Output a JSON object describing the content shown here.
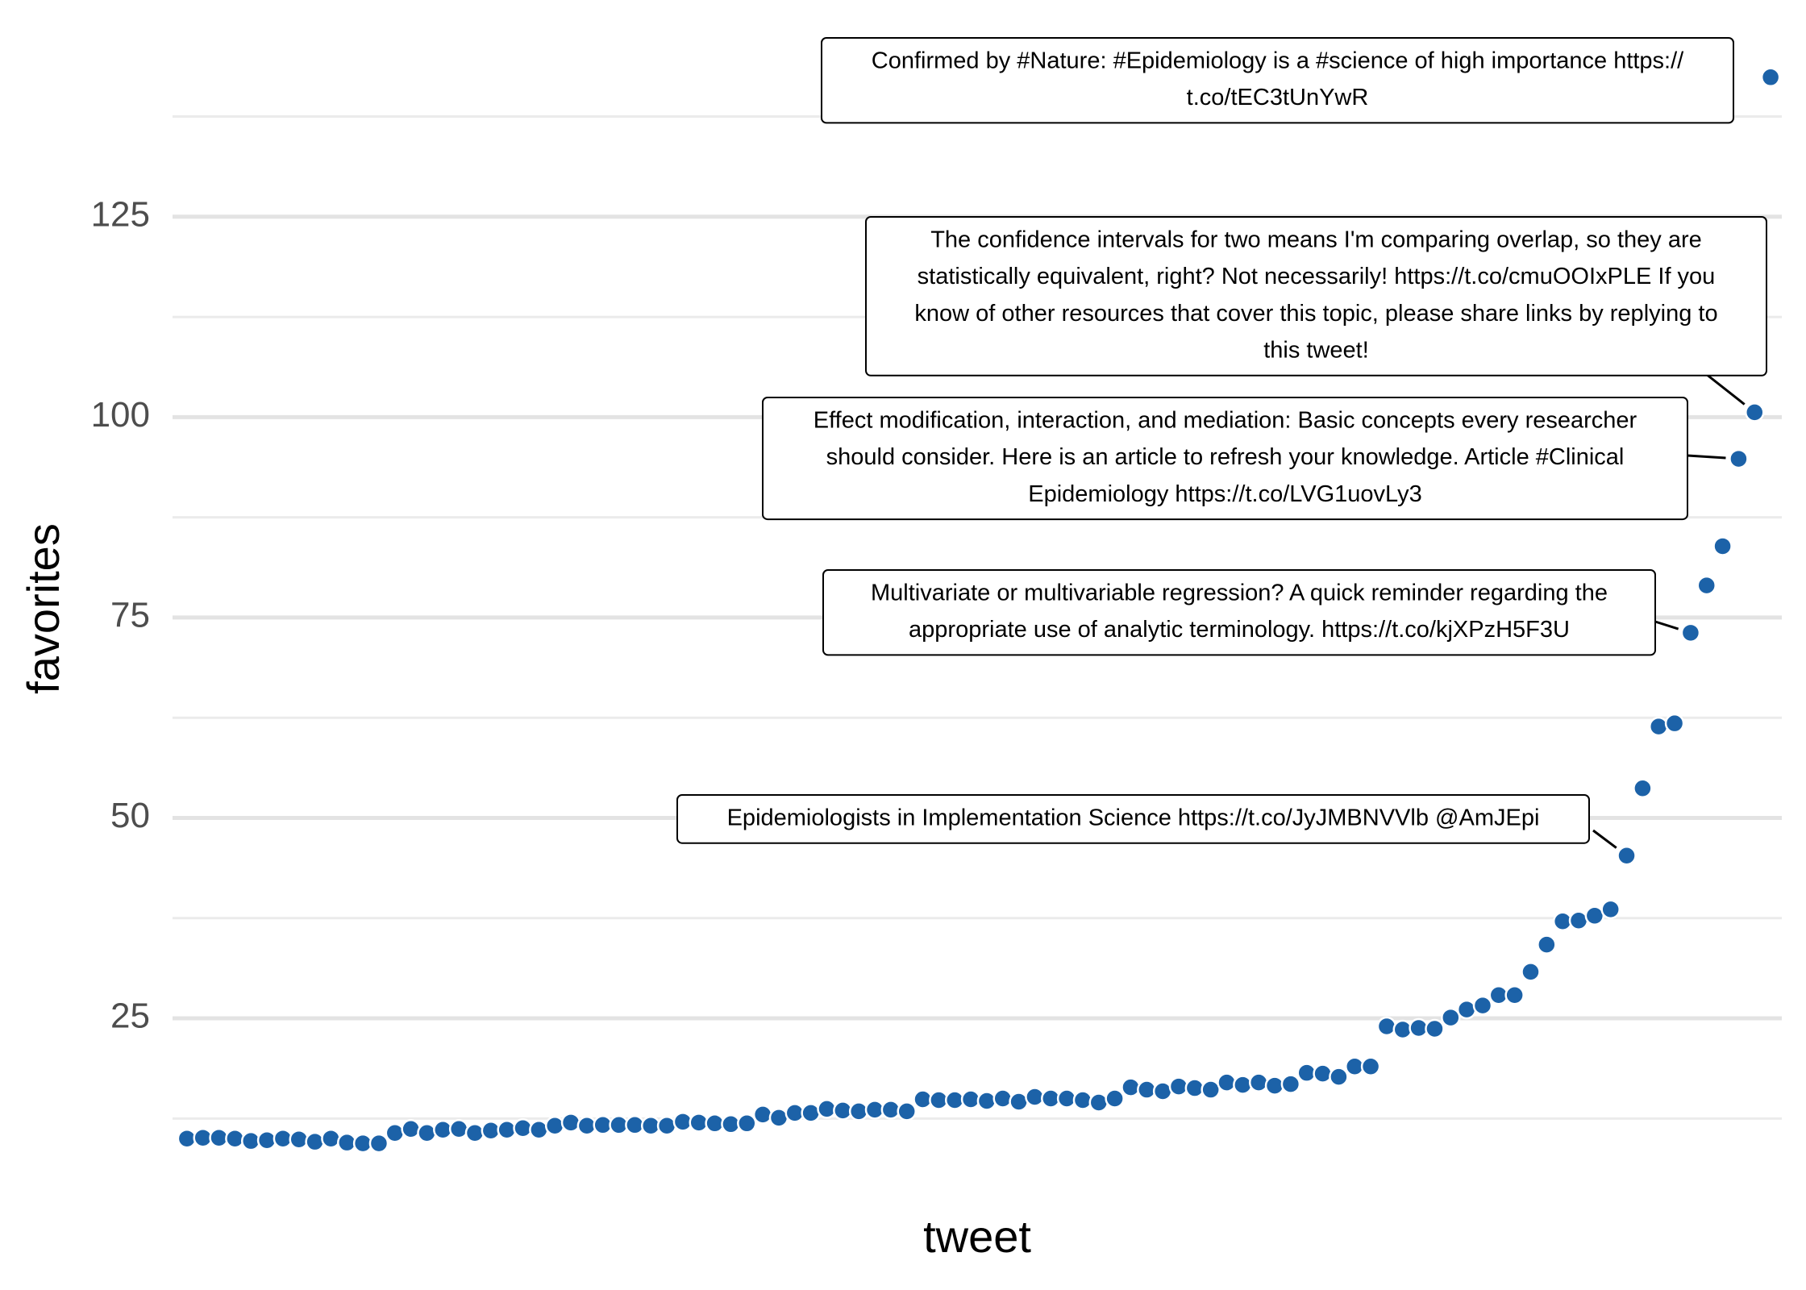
{
  "chart_data": {
    "type": "scatter",
    "xlabel": "tweet",
    "ylabel": "favorites",
    "x": [
      1,
      2,
      3,
      4,
      5,
      6,
      7,
      8,
      9,
      10,
      11,
      12,
      13,
      14,
      15,
      16,
      17,
      18,
      19,
      20,
      21,
      22,
      23,
      24,
      25,
      26,
      27,
      28,
      29,
      30,
      31,
      32,
      33,
      34,
      35,
      36,
      37,
      38,
      39,
      40,
      41,
      42,
      43,
      44,
      45,
      46,
      47,
      48,
      49,
      50,
      51,
      52,
      53,
      54,
      55,
      56,
      57,
      58,
      59,
      60,
      61,
      62,
      63,
      64,
      65,
      66,
      67,
      68,
      69,
      70,
      71,
      72,
      73,
      74,
      75,
      76,
      77,
      78,
      79,
      80,
      81,
      82,
      83,
      84,
      85,
      86,
      87,
      88,
      89,
      90,
      91,
      92,
      93,
      94,
      95,
      96,
      97,
      98,
      99,
      100
    ],
    "values": [
      10,
      10.1,
      10.1,
      10,
      9.7,
      9.8,
      10,
      9.9,
      9.6,
      10,
      9.5,
      9.4,
      9.4,
      10.7,
      11.2,
      10.7,
      11.1,
      11.2,
      10.7,
      11,
      11.1,
      11.3,
      11.1,
      11.6,
      12,
      11.6,
      11.7,
      11.7,
      11.7,
      11.6,
      11.6,
      12.1,
      12,
      11.9,
      11.8,
      11.9,
      13,
      12.6,
      13.2,
      13.2,
      13.7,
      13.5,
      13.4,
      13.6,
      13.6,
      13.4,
      14.9,
      14.8,
      14.8,
      14.9,
      14.7,
      15,
      14.6,
      15.2,
      15,
      15,
      14.8,
      14.5,
      15,
      16.4,
      16.1,
      15.9,
      16.5,
      16.3,
      16.1,
      17,
      16.7,
      17,
      16.6,
      16.8,
      18.2,
      18.1,
      17.7,
      19,
      19,
      24,
      23.6,
      23.8,
      23.7,
      25.1,
      26.1,
      26.6,
      27.9,
      27.9,
      30.8,
      34.2,
      37.1,
      37.2,
      37.8,
      38.6,
      45.3,
      53.7,
      61.4,
      61.8,
      73.1,
      79,
      83.9,
      94.8,
      100.6,
      142.4
    ],
    "color": "#1c62a8",
    "xlim": [
      0.1,
      100.7
    ],
    "ylim": [
      6.5,
      146
    ],
    "yticks": [
      25,
      50,
      75,
      100,
      125
    ],
    "yminor": [
      12.5,
      37.5,
      62.5,
      87.5,
      112.5,
      137.5
    ],
    "grid": true,
    "annotations": [
      {
        "x": 91,
        "lines": [
          "Epidemiologists in Implementation Science https://t.co/JyJMBNVVlb @AmJEpi"
        ]
      },
      {
        "x": 95,
        "lines": [
          "Multivariate or multivariable regression? A quick reminder regarding the",
          "appropriate use of analytic terminology. https://t.co/kjXPzH5F3U"
        ]
      },
      {
        "x": 98,
        "lines": [
          "Effect modification, interaction, and mediation: Basic concepts every researcher",
          "should consider. Here is an article to refresh your knowledge. Article #Clinical",
          "Epidemiology https://t.co/LVG1uovLy3"
        ]
      },
      {
        "x": 99,
        "lines": [
          "The confidence intervals for two means I'm comparing overlap, so they are",
          "statistically equivalent, right? Not necessarily! https://t.co/cmuOOIxPLE If you",
          "know of other resources that cover this topic, please share links by replying to",
          "this tweet!"
        ]
      },
      {
        "x": 100,
        "lines": [
          "Confirmed by #Nature: #Epidemiology is a #science of high importance https://",
          "t.co/tEC3tUnYwR"
        ]
      }
    ]
  }
}
